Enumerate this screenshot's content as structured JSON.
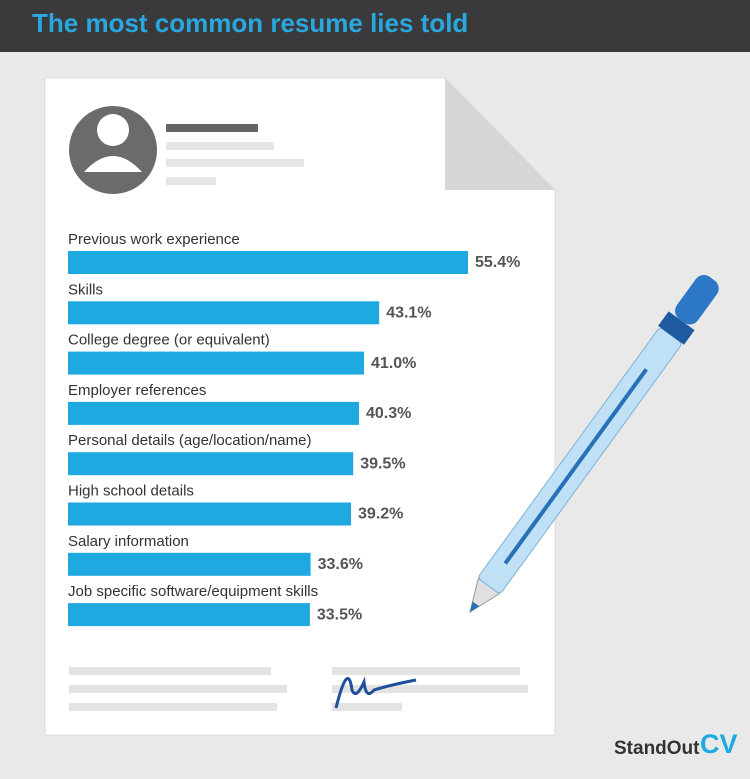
{
  "chart_data": {
    "type": "bar",
    "orientation": "horizontal",
    "title": "The most common resume lies told",
    "categories": [
      "Previous work experience",
      "Skills",
      "College degree (or equivalent)",
      "Employer references",
      "Personal details (age/location/name)",
      "High school details",
      "Salary information",
      "Job specific software/equipment skills"
    ],
    "values": [
      55.4,
      43.1,
      41.0,
      40.3,
      39.5,
      39.2,
      33.6,
      33.5
    ],
    "value_labels": [
      "55.4%",
      "43.1%",
      "41.0%",
      "40.3%",
      "39.5%",
      "39.2%",
      "33.6%",
      "33.5%"
    ],
    "color": "#1fa9e1"
  },
  "logo": {
    "name": "StandOut",
    "suffix": "CV"
  }
}
